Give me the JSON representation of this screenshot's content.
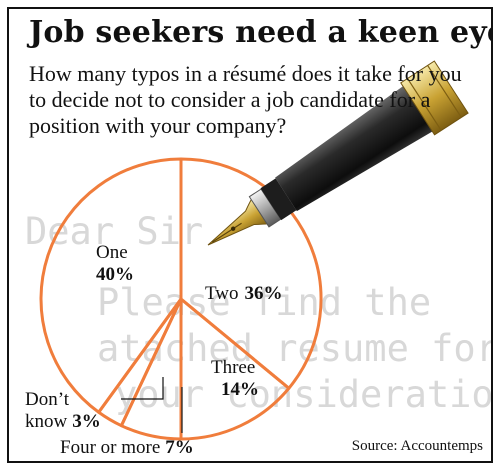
{
  "title": "Job seekers need a keen eye",
  "subtitle": "How many typos in a résumé does it take for you to decide not to consider a job candidate for a position with your company?",
  "source": "Source: Accountemps",
  "letter_lines": [
    "Dear Sir",
    "Please find the",
    "atached resume for",
    "your consideration"
  ],
  "colors": {
    "slice_outline": "#f07d3c",
    "text": "#111111",
    "letter_text": "#d8d8d8"
  },
  "icons": [
    "fountain-pen-icon"
  ],
  "chart_data": {
    "type": "pie",
    "title": "Job seekers need a keen eye",
    "categories": [
      "One",
      "Two",
      "Three",
      "Four or more",
      "Don’t know"
    ],
    "values": [
      40,
      36,
      14,
      7,
      3
    ],
    "unit": "%",
    "labels": [
      {
        "name": "One",
        "value": "40%"
      },
      {
        "name": "Two",
        "value": "36%"
      },
      {
        "name": "Three",
        "value": "14%"
      },
      {
        "name": "Four or more",
        "value": "7%"
      },
      {
        "name": "Don’t",
        "name2": "know",
        "value": "3%"
      }
    ]
  }
}
